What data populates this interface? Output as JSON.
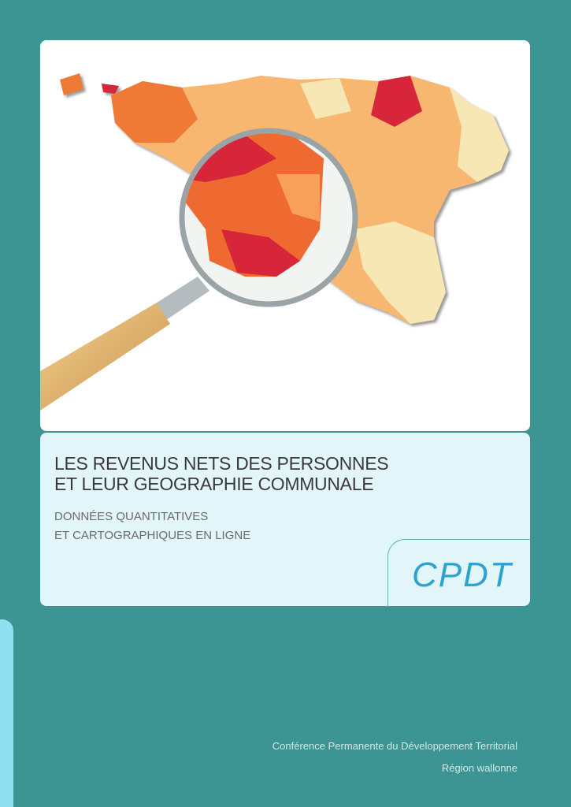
{
  "cover": {
    "title_line1": "LES REVENUS NETS DES PERSONNES",
    "title_line2": "ET LEUR GEOGRAPHIE COMMUNALE",
    "subtitle_line1": "DONNÉES QUANTITATIVES",
    "subtitle_line2": "ET CARTOGRAPHIQUES EN LIGNE",
    "logo_text": "CPDT",
    "publisher": "Conférence Permanente du Développement Territorial",
    "region": "Région wallonne"
  },
  "colors": {
    "background": "#3d9593",
    "title_panel": "#e2f5f9",
    "logo": "#2ea3d0",
    "map_low": "#f6e7b4",
    "map_mid": "#f8b770",
    "map_high": "#ef7a34",
    "map_top": "#d7263a"
  },
  "illustration": {
    "icon": "magnifying-glass-over-map"
  }
}
